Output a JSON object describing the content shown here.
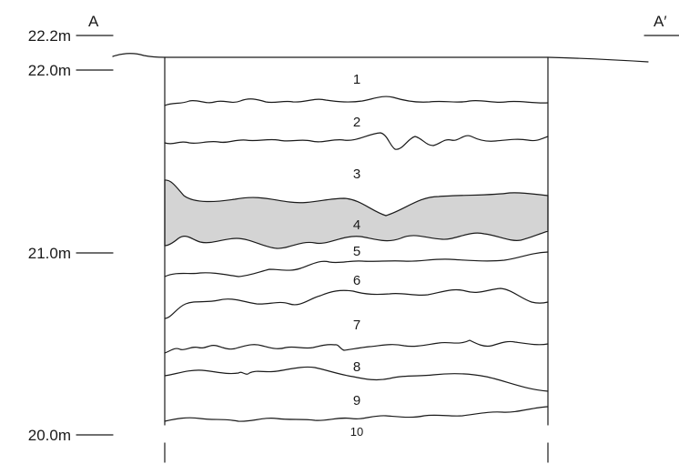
{
  "section": {
    "start_label": "A",
    "end_label": "A′"
  },
  "elevations": [
    {
      "label": "22.2m"
    },
    {
      "label": "22.0m"
    },
    {
      "label": "21.0m"
    },
    {
      "label": "20.0m"
    }
  ],
  "layers": [
    {
      "label": "1"
    },
    {
      "label": "2"
    },
    {
      "label": "3"
    },
    {
      "label": "4",
      "shaded": true,
      "fill": "#d4d4d4"
    },
    {
      "label": "5"
    },
    {
      "label": "6"
    },
    {
      "label": "7"
    },
    {
      "label": "8"
    },
    {
      "label": "9"
    },
    {
      "label": "10"
    }
  ]
}
